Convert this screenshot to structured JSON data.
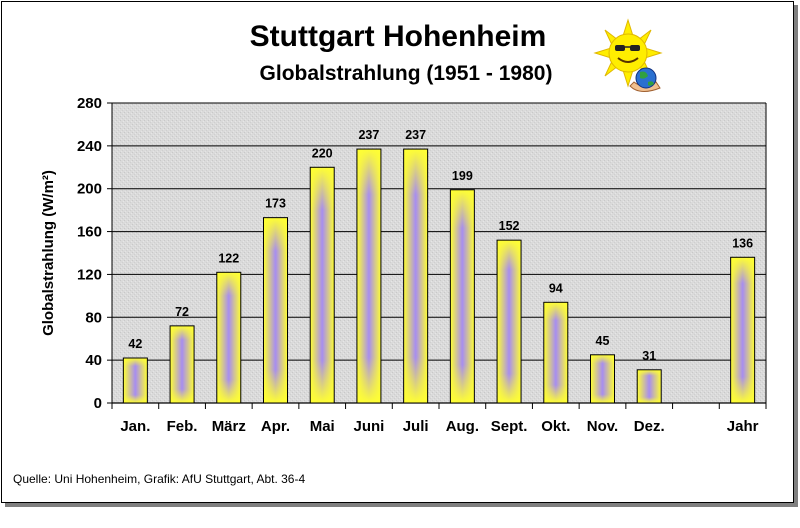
{
  "source": "Quelle: Uni Hohenheim, Grafik: AfU Stuttgart, Abt. 36-4",
  "logo": "sun-with-earth",
  "colors": {
    "bar_edge": "#ffff33",
    "bar_core": "#a78df0",
    "plot_bg": "#d9d9d9",
    "grid": "#000000"
  },
  "chart_data": {
    "type": "bar",
    "title": "Stuttgart Hohenheim",
    "subtitle": "Globalstrahlung (1951 - 1980)",
    "xlabel": "",
    "ylabel": "Globalstrahlung (W/m²)",
    "ylim": [
      0,
      280
    ],
    "yticks": [
      0,
      40,
      80,
      120,
      160,
      200,
      240,
      280
    ],
    "grid": true,
    "categories": [
      "Jan.",
      "Feb.",
      "März",
      "Apr.",
      "Mai",
      "Juni",
      "Juli",
      "Aug.",
      "Sept.",
      "Okt.",
      "Nov.",
      "Dez.",
      "",
      "Jahr"
    ],
    "values": [
      42,
      72,
      122,
      173,
      220,
      237,
      237,
      199,
      152,
      94,
      45,
      31,
      null,
      136
    ]
  }
}
